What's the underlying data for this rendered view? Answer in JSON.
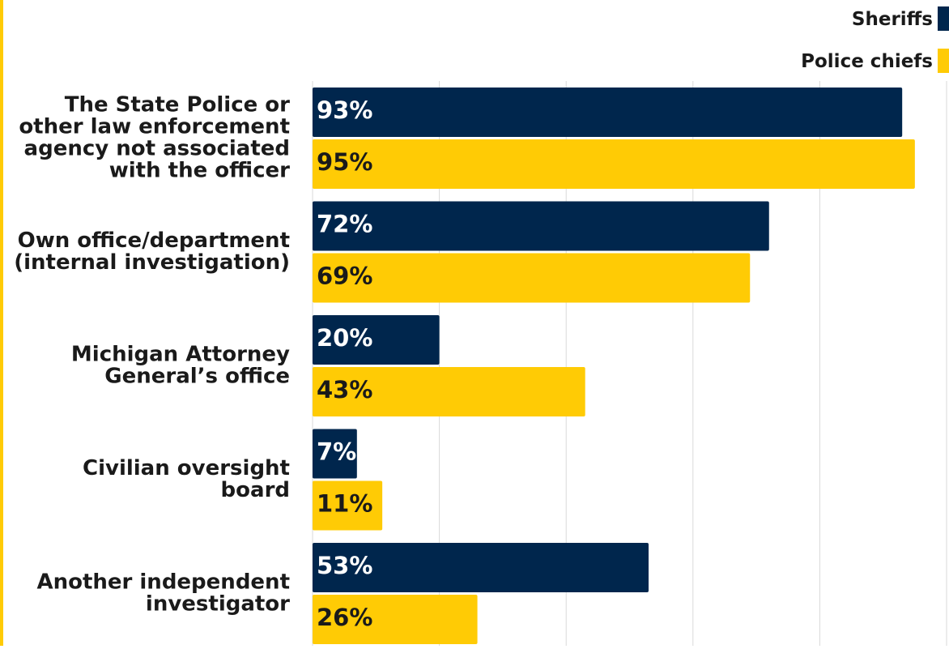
{
  "chart_data": {
    "type": "bar",
    "orientation": "horizontal",
    "categories": [
      [
        "The State Police or",
        "other law enforcement",
        "agency not associated",
        "with the officer"
      ],
      [
        "Own office/department",
        "(internal investigation)"
      ],
      [
        "Michigan Attorney",
        "General’s office"
      ],
      [
        "Civilian oversight",
        "board"
      ],
      [
        "Another independent",
        "investigator"
      ]
    ],
    "series": [
      {
        "name": "Sheriffs",
        "values": [
          93,
          72,
          20,
          7,
          53
        ],
        "labels": [
          "93%",
          "72%",
          "20%",
          "7%",
          "53%"
        ]
      },
      {
        "name": "Police chiefs",
        "values": [
          95,
          69,
          43,
          11,
          26
        ],
        "labels": [
          "95%",
          "69%",
          "43%",
          "11%",
          "26%"
        ]
      }
    ],
    "xlim": [
      0,
      100
    ],
    "grid": true,
    "legend_position": "top-right"
  },
  "colors": {
    "sheriffs": "#00264d",
    "police_chiefs": "#ffcb05",
    "grid": "#d9d9d9",
    "label_text": "#1a1a1a",
    "on_dark_text": "#ffffff",
    "on_light_text": "#1a1a1a",
    "accent_rule": "#ffcb05"
  }
}
